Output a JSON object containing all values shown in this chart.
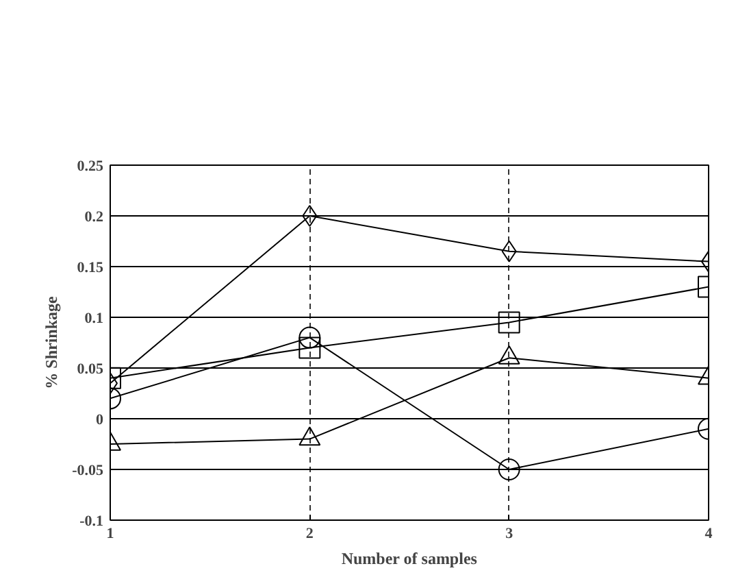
{
  "chart_data": {
    "type": "line",
    "xlabel": "Number of samples",
    "ylabel": "% Shrinkage",
    "x": [
      1,
      2,
      3,
      4
    ],
    "series": [
      {
        "color": "#000000",
        "marker": "diamond",
        "values": [
          0.035,
          0.2,
          0.165,
          0.155
        ]
      },
      {
        "color": "#000000",
        "marker": "square",
        "values": [
          0.04,
          0.07,
          0.095,
          0.13
        ]
      },
      {
        "color": "#000000",
        "marker": "circle",
        "values": [
          0.02,
          0.08,
          -0.05,
          -0.01
        ]
      },
      {
        "color": "#000000",
        "marker": "triangle",
        "values": [
          -0.025,
          -0.02,
          0.06,
          0.04
        ]
      }
    ],
    "xlim": [
      1,
      4
    ],
    "ylim": [
      -0.1,
      0.25
    ],
    "xticks": [
      1,
      2,
      3,
      4
    ],
    "yticks": [
      -0.1,
      -0.05,
      0,
      0.05,
      0.1,
      0.15,
      0.2,
      0.25
    ],
    "grid": true,
    "line_style": "solid"
  }
}
